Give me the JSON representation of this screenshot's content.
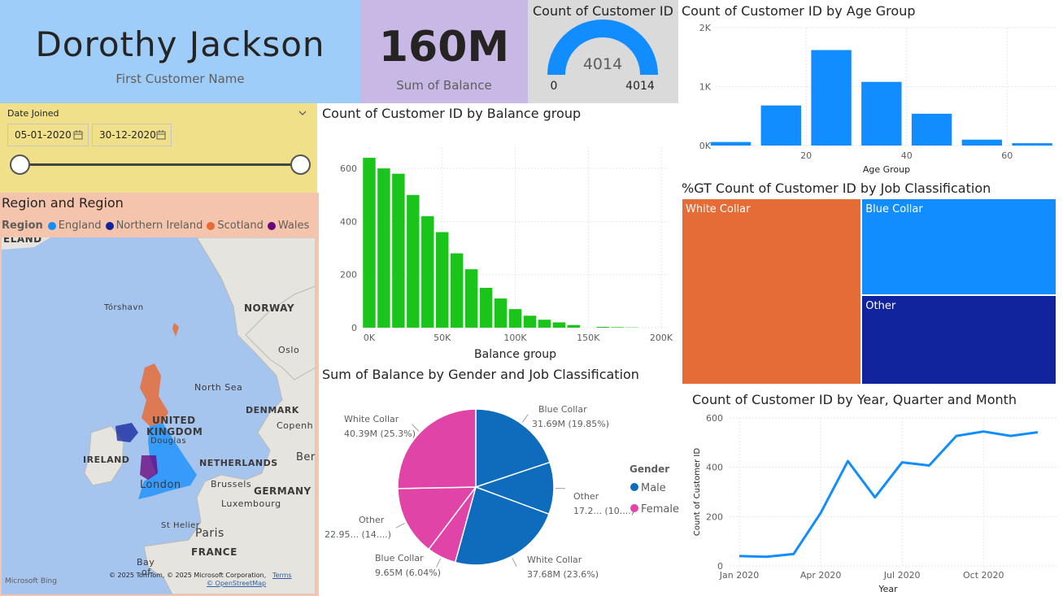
{
  "kpi_name": {
    "value": "Dorothy Jackson",
    "label": "First Customer Name"
  },
  "kpi_balance": {
    "value": "160M",
    "label": "Sum of Balance"
  },
  "gauge": {
    "title": "Count of Customer ID",
    "value": "4014",
    "min_label": "0",
    "max_label": "4014",
    "fraction": 1.0,
    "color": "#118dff"
  },
  "slicer": {
    "title": "Date Joined",
    "start": "05-01-2020",
    "end": "30-12-2020",
    "chevron_icon": "chevron-down-icon",
    "calendar_icon": "calendar-icon"
  },
  "map": {
    "title": "Region and Region",
    "legend_label": "Region",
    "legend": [
      {
        "name": "England",
        "color": "#118dff"
      },
      {
        "name": "Northern Ireland",
        "color": "#12239e"
      },
      {
        "name": "Scotland",
        "color": "#e66c37"
      },
      {
        "name": "Wales",
        "color": "#6b007b"
      }
    ],
    "places": [
      "ELAND",
      "Tórshavn",
      "NORWAY",
      "Oslo",
      "North Sea",
      "UNITED",
      "KINGDOM",
      "DENMARK",
      "Copenh",
      "Douglas",
      "IRELAND",
      "NETHERLANDS",
      "Ber",
      "London",
      "Brussels",
      "GERMANY",
      "Luxembourg",
      "St Helier",
      "Paris",
      "FRANCE",
      "Bay",
      "of"
    ],
    "attribution": "© 2025 TomTom, © 2025 Microsoft Corporation,",
    "terms": "Terms",
    "osm": "© OpenStreetMap",
    "bing": "Microsoft Bing"
  },
  "chart_data": [
    {
      "id": "age",
      "type": "bar",
      "title": "Count of Customer ID by Age Group",
      "xlabel": "Age Group",
      "ylabel": "Count of Customer ID",
      "x": [
        5,
        15,
        25,
        35,
        45,
        55,
        65
      ],
      "values": [
        60,
        680,
        1620,
        1080,
        540,
        100,
        40
      ],
      "xticks": [
        20,
        40,
        60
      ],
      "xtick_labels": [
        "20",
        "40",
        "60"
      ],
      "yticks": [
        0,
        1000,
        2000
      ],
      "ytick_labels": [
        "0K",
        "1K",
        "2K"
      ],
      "ylim": [
        0,
        2000
      ],
      "xlim": [
        2,
        70
      ],
      "color": "#118dff",
      "grid": true
    },
    {
      "id": "balance",
      "type": "bar",
      "title": "Count of Customer ID by Balance group",
      "xlabel": "Balance group",
      "ylabel": "Count of Customer ID",
      "x": [
        0,
        10000,
        20000,
        30000,
        40000,
        50000,
        60000,
        70000,
        80000,
        90000,
        100000,
        110000,
        120000,
        130000,
        140000,
        150000,
        160000,
        170000,
        180000
      ],
      "values": [
        640,
        600,
        580,
        500,
        420,
        360,
        280,
        220,
        150,
        110,
        70,
        45,
        30,
        20,
        10,
        0,
        3,
        2,
        1
      ],
      "xticks": [
        0,
        50000,
        100000,
        150000,
        200000
      ],
      "xtick_labels": [
        "0K",
        "50K",
        "100K",
        "150K",
        "200K"
      ],
      "yticks": [
        0,
        200,
        400,
        600
      ],
      "ytick_labels": [
        "0",
        "200",
        "400",
        "600"
      ],
      "ylim": [
        0,
        680
      ],
      "xlim": [
        -5000,
        205000
      ],
      "color": "#1ac41a",
      "grid": true
    },
    {
      "id": "treemap",
      "type": "treemap",
      "title": "%GT Count of Customer ID by Job Classification",
      "items": [
        {
          "name": "White Collar",
          "value": 48,
          "color": "#e66c37"
        },
        {
          "name": "Blue Collar",
          "value": 27,
          "color": "#118dff"
        },
        {
          "name": "Other",
          "value": 25,
          "color": "#12239e"
        }
      ]
    },
    {
      "id": "pie",
      "type": "pie",
      "title": "Sum of Balance by Gender and Job Classification",
      "legend_title": "Gender",
      "legend": [
        {
          "name": "Male",
          "color": "#0f6cbd"
        },
        {
          "name": "Female",
          "color": "#e044a7"
        }
      ],
      "slices": [
        {
          "gender": "Male",
          "job": "Blue Collar",
          "value": 31.69,
          "label1": "Blue Collar",
          "label2": "31.69M (19.85%)",
          "color": "#0f6cbd"
        },
        {
          "gender": "Male",
          "job": "Other",
          "value": 17.2,
          "label1": "Other",
          "label2": "17.2... (10....)",
          "color": "#0f6cbd"
        },
        {
          "gender": "Male",
          "job": "White Collar",
          "value": 37.68,
          "label1": "White Collar",
          "label2": "37.68M (23.6%)",
          "color": "#0f6cbd"
        },
        {
          "gender": "Female",
          "job": "Blue Collar",
          "value": 9.65,
          "label1": "Blue Collar",
          "label2": "9.65M (6.04%)",
          "color": "#e044a7"
        },
        {
          "gender": "Female",
          "job": "Other",
          "value": 22.95,
          "label1": "Other",
          "label2": "22.95... (14....)",
          "color": "#e044a7"
        },
        {
          "gender": "Female",
          "job": "White Collar",
          "value": 40.39,
          "label1": "White Collar",
          "label2": "40.39M (25.3%)",
          "color": "#e044a7"
        }
      ]
    },
    {
      "id": "line",
      "type": "line",
      "title": "Count of Customer ID by Year, Quarter and Month",
      "xlabel": "Year",
      "ylabel": "Count of Customer ID",
      "x": [
        "2020-01",
        "2020-02",
        "2020-03",
        "2020-04",
        "2020-05",
        "2020-06",
        "2020-07",
        "2020-08",
        "2020-09",
        "2020-10",
        "2020-11",
        "2020-12"
      ],
      "values": [
        40,
        37,
        48,
        215,
        425,
        278,
        420,
        407,
        527,
        545,
        527,
        542
      ],
      "xtick_labels": [
        "Jan 2020",
        "Apr 2020",
        "Jul 2020",
        "Oct 2020"
      ],
      "xtick_index": [
        0,
        3,
        6,
        9
      ],
      "yticks": [
        0,
        200,
        400,
        600
      ],
      "ytick_labels": [
        "0",
        "200",
        "400",
        "600"
      ],
      "ylim": [
        0,
        600
      ],
      "color": "#118dff",
      "grid": true
    }
  ]
}
